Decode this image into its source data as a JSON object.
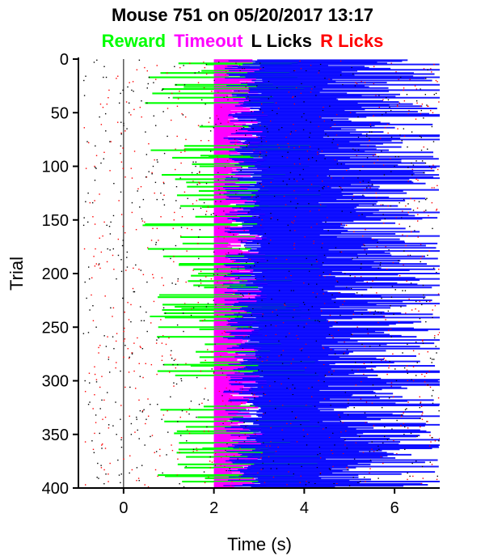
{
  "chart_data": {
    "type": "raster",
    "title": "Mouse 751 on 05/20/2017 13:17",
    "xlabel": "Time (s)",
    "ylabel": "Trial",
    "xlim": [
      -1,
      7
    ],
    "ylim": [
      0,
      400
    ],
    "y_inverted": true,
    "x_ticks": [
      0,
      2,
      4,
      6
    ],
    "y_ticks": [
      0,
      50,
      100,
      150,
      200,
      250,
      300,
      350,
      400
    ],
    "vertical_line_x": 0,
    "legend": [
      {
        "name": "Reward",
        "color": "#00ff00"
      },
      {
        "name": "Timeout",
        "color": "#ff00ff"
      },
      {
        "name": "L Licks",
        "color": "#000000"
      },
      {
        "name": "R Licks",
        "color": "#ff0000"
      }
    ],
    "lick_line_color": "#0000ff",
    "trial_count": 400,
    "outcome_start_time": 2
  }
}
